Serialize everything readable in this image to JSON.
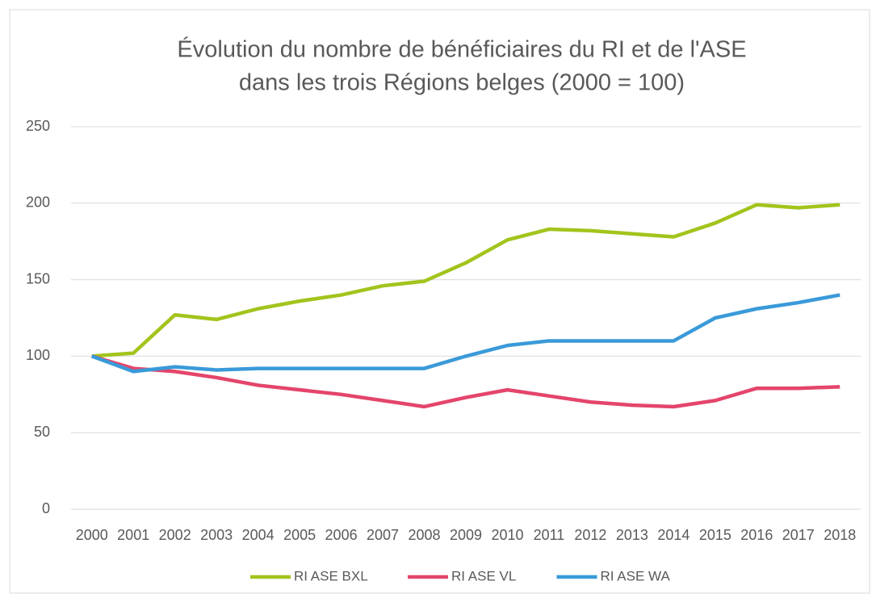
{
  "chart_data": {
    "type": "line",
    "title": [
      "Évolution du nombre de bénéficiaires du RI et de l'ASE",
      "dans les trois Régions belges (2000 = 100)"
    ],
    "categories": [
      "2000",
      "2001",
      "2002",
      "2003",
      "2004",
      "2005",
      "2006",
      "2007",
      "2008",
      "2009",
      "2010",
      "2011",
      "2012",
      "2013",
      "2014",
      "2015",
      "2016",
      "2017",
      "2018"
    ],
    "series": [
      {
        "name": "RI ASE BXL",
        "color": "#a2c41d",
        "values": [
          100,
          102,
          127,
          124,
          131,
          136,
          140,
          146,
          149,
          161,
          176,
          183,
          182,
          180,
          178,
          187,
          199,
          197,
          199
        ]
      },
      {
        "name": "RI ASE VL",
        "color": "#e4456b",
        "values": [
          100,
          92,
          90,
          86,
          81,
          78,
          75,
          71,
          67,
          73,
          78,
          74,
          70,
          68,
          67,
          71,
          79,
          79,
          80
        ]
      },
      {
        "name": "RI ASE WA",
        "color": "#3a9ad9",
        "values": [
          100,
          90,
          93,
          91,
          92,
          92,
          92,
          92,
          92,
          100,
          107,
          110,
          110,
          110,
          110,
          125,
          131,
          135,
          140
        ]
      }
    ],
    "ylim": [
      0,
      250
    ],
    "yticks": [
      0,
      50,
      100,
      150,
      200,
      250
    ],
    "grid": true,
    "legend": "bottom"
  }
}
